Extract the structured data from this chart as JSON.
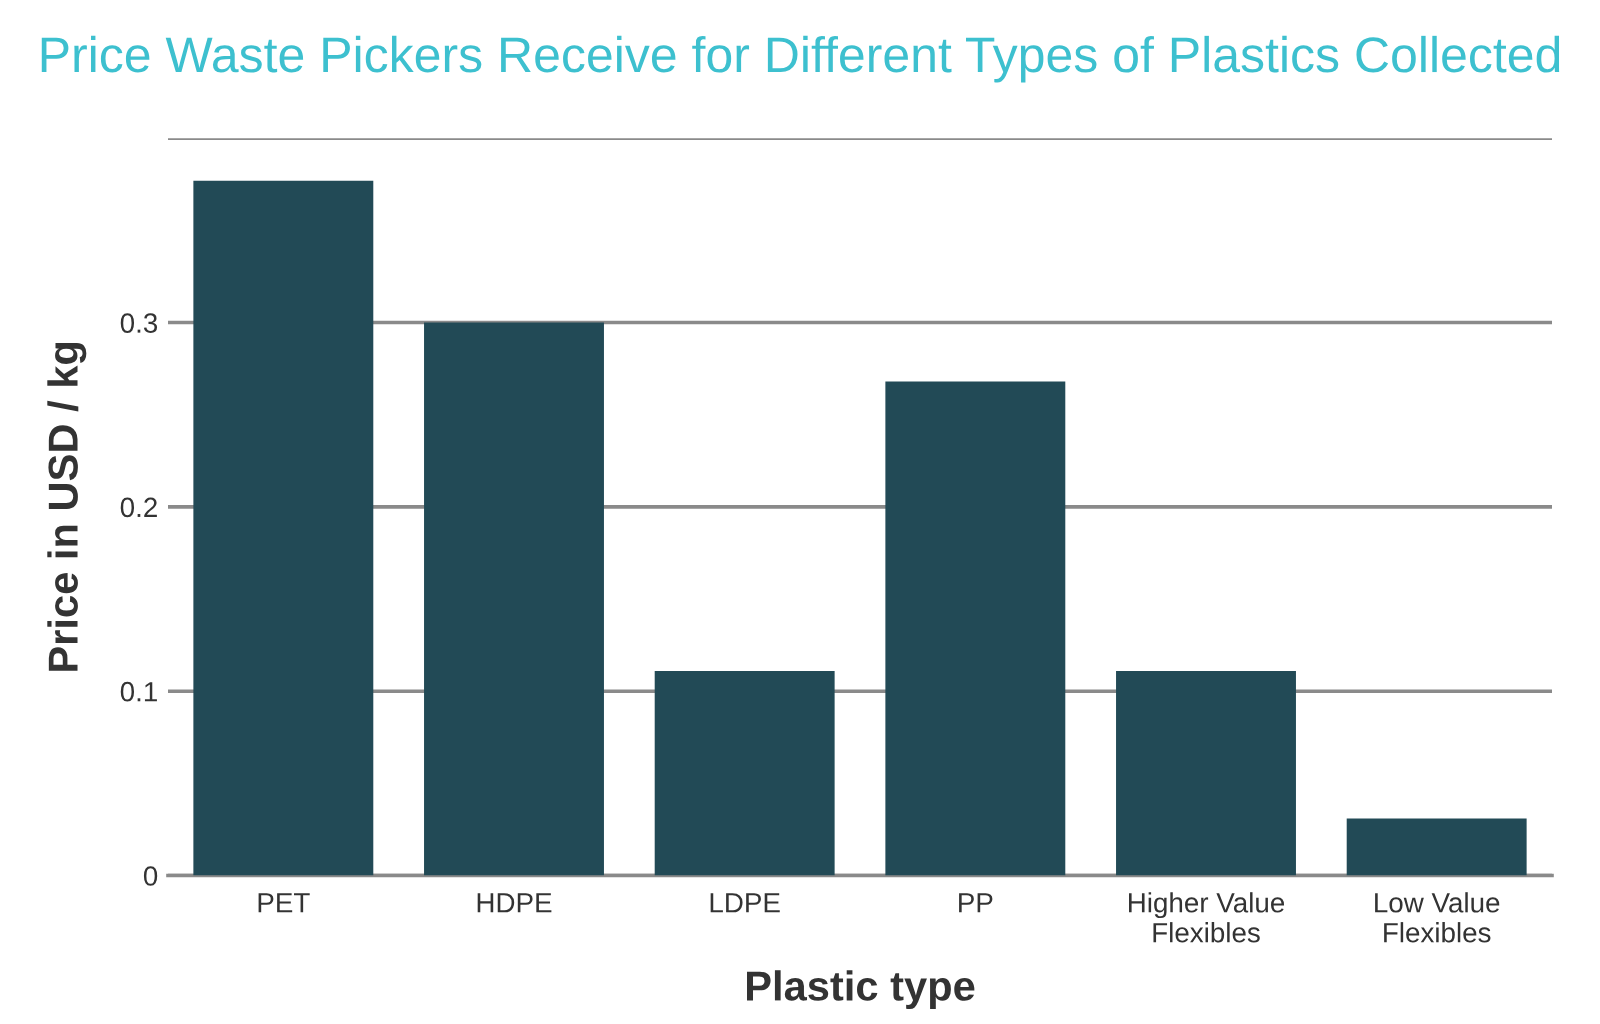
{
  "chart_data": {
    "type": "bar",
    "title": "Price Waste Pickers Receive for Different Types of Plastics Collected",
    "xlabel": "Plastic type",
    "ylabel": "Price in USD / kg",
    "categories": [
      "PET",
      "HDPE",
      "LDPE",
      "PP",
      "Higher Value\nFlexibles",
      "Low Value\nFlexibles"
    ],
    "values": [
      0.377,
      0.3,
      0.111,
      0.268,
      0.111,
      0.031
    ],
    "color": "#224a56",
    "ylim": [
      0,
      0.4
    ],
    "yticks": [
      0,
      0.1,
      0.2,
      0.3,
      {
        "value": 0.4,
        "label": null
      }
    ],
    "grid": "y"
  }
}
